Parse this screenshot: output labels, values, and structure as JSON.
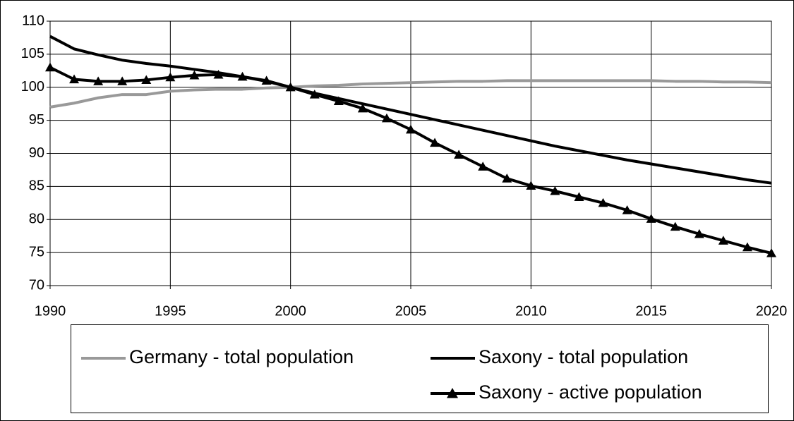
{
  "chart_data": {
    "type": "line",
    "x": [
      1990,
      1991,
      1992,
      1993,
      1994,
      1995,
      1996,
      1997,
      1998,
      1999,
      2000,
      2001,
      2002,
      2003,
      2004,
      2005,
      2006,
      2007,
      2008,
      2009,
      2010,
      2011,
      2012,
      2013,
      2014,
      2015,
      2016,
      2017,
      2018,
      2019,
      2020
    ],
    "xlim": [
      1990,
      2020
    ],
    "xticks": [
      1990,
      1995,
      2000,
      2005,
      2010,
      2015,
      2020
    ],
    "ylim": [
      70,
      110
    ],
    "yticks": [
      70,
      75,
      80,
      85,
      90,
      95,
      100,
      105,
      110
    ],
    "grid": true,
    "legend": "bottom",
    "series": [
      {
        "name": "Germany - total population",
        "color": "#999999",
        "marker": "none",
        "values": [
          97.0,
          97.6,
          98.4,
          98.9,
          98.9,
          99.4,
          99.6,
          99.7,
          99.7,
          99.9,
          100,
          100.2,
          100.3,
          100.5,
          100.6,
          100.7,
          100.8,
          100.9,
          100.9,
          101.0,
          101.0,
          101.0,
          101.0,
          101.0,
          101.0,
          101.0,
          100.9,
          100.9,
          100.8,
          100.8,
          100.7
        ]
      },
      {
        "name": "Saxony - total population",
        "color": "#000000",
        "marker": "none",
        "values": [
          107.7,
          105.8,
          104.9,
          104.1,
          103.6,
          103.2,
          102.7,
          102.2,
          101.6,
          100.9,
          100,
          99.1,
          98.3,
          97.5,
          96.7,
          95.9,
          95.1,
          94.3,
          93.5,
          92.7,
          91.9,
          91.1,
          90.4,
          89.7,
          89.0,
          88.4,
          87.8,
          87.2,
          86.6,
          86.0,
          85.5
        ]
      },
      {
        "name": "Saxony - active population",
        "color": "#000000",
        "marker": "triangle",
        "values": [
          103.0,
          101.2,
          100.9,
          100.9,
          101.1,
          101.5,
          101.8,
          101.9,
          101.6,
          101.0,
          100,
          98.9,
          97.9,
          96.8,
          95.3,
          93.6,
          91.6,
          89.8,
          88.0,
          86.2,
          85.1,
          84.3,
          83.4,
          82.5,
          81.4,
          80.1,
          78.9,
          77.8,
          76.8,
          75.8,
          74.9
        ]
      }
    ]
  }
}
